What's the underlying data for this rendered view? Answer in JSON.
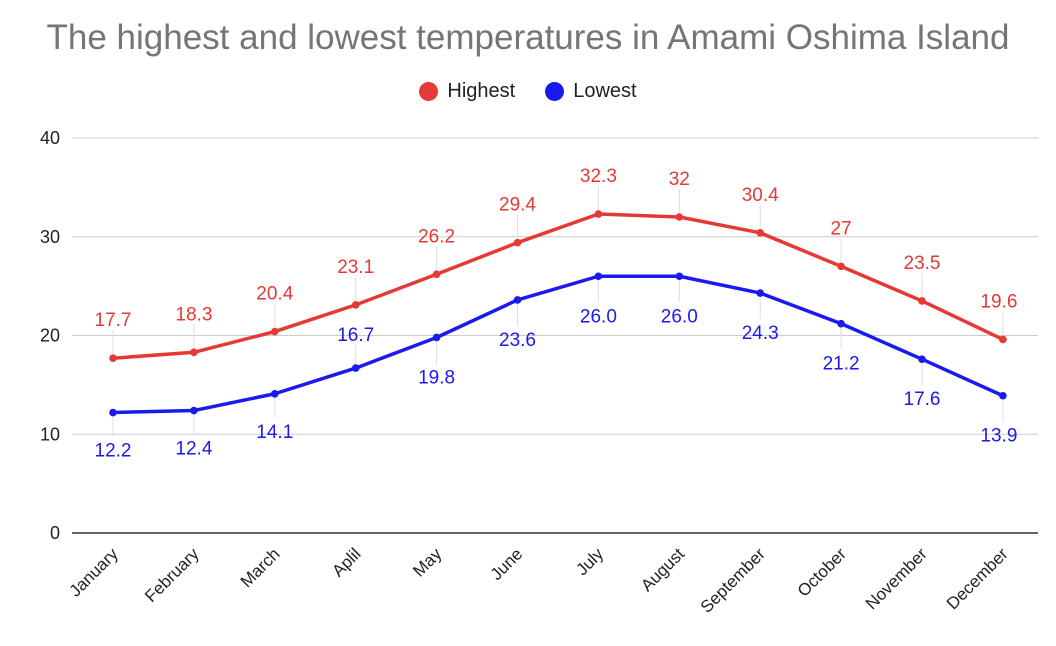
{
  "chart_data": {
    "type": "line",
    "title": "The highest and lowest temperatures in Amami Oshima Island",
    "categories": [
      "January",
      "February",
      "March",
      "Aplil",
      "May",
      "June",
      "July",
      "August",
      "September",
      "October",
      "November",
      "December"
    ],
    "series": [
      {
        "name": "Highest",
        "color": "#e53935",
        "values": [
          17.7,
          18.3,
          20.4,
          23.1,
          26.2,
          29.4,
          32.3,
          32,
          30.4,
          27,
          23.5,
          19.6
        ],
        "labels": [
          "17.7",
          "18.3",
          "20.4",
          "23.1",
          "26.2",
          "29.4",
          "32.3",
          "32",
          "30.4",
          "27",
          "23.5",
          "19.6"
        ]
      },
      {
        "name": "Lowest",
        "color": "#1a1aee",
        "values": [
          12.2,
          12.4,
          14.1,
          16.7,
          19.8,
          23.6,
          26.0,
          26.0,
          24.3,
          21.2,
          17.6,
          13.9
        ],
        "labels": [
          "12.2",
          "12.4",
          "14.1",
          "16.7",
          "19.8",
          "23.6",
          "26.0",
          "26.0",
          "24.3",
          "21.2",
          "17.6",
          "13.9"
        ]
      }
    ],
    "ylim": [
      0,
      40
    ],
    "yticks": [
      "0",
      "10",
      "20",
      "30",
      "40"
    ],
    "grid": true,
    "legend_position": "top"
  }
}
